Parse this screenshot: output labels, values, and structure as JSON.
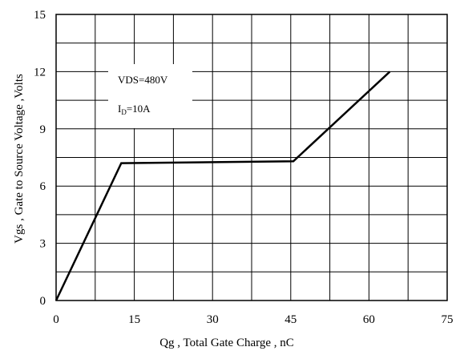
{
  "chart_data": {
    "type": "line",
    "xlabel": "Qg , Total Gate Charge , nC",
    "ylabel": "Vgs , Gate to Source Voltage ,Volts",
    "xlim": [
      0,
      75
    ],
    "ylim": [
      0,
      15
    ],
    "x_ticks": [
      "0",
      "15",
      "30",
      "45",
      "60",
      "75"
    ],
    "y_ticks": [
      "0",
      "3",
      "6",
      "9",
      "12",
      "15"
    ],
    "grid": true,
    "series": [
      {
        "x": [
          0,
          12.5,
          45.5,
          64
        ],
        "y": [
          0,
          7.2,
          7.3,
          12
        ]
      }
    ],
    "annotations": {
      "vds": "VDS=480V",
      "id_main": "I",
      "id_sub": "D",
      "id_value": "=10A"
    }
  }
}
